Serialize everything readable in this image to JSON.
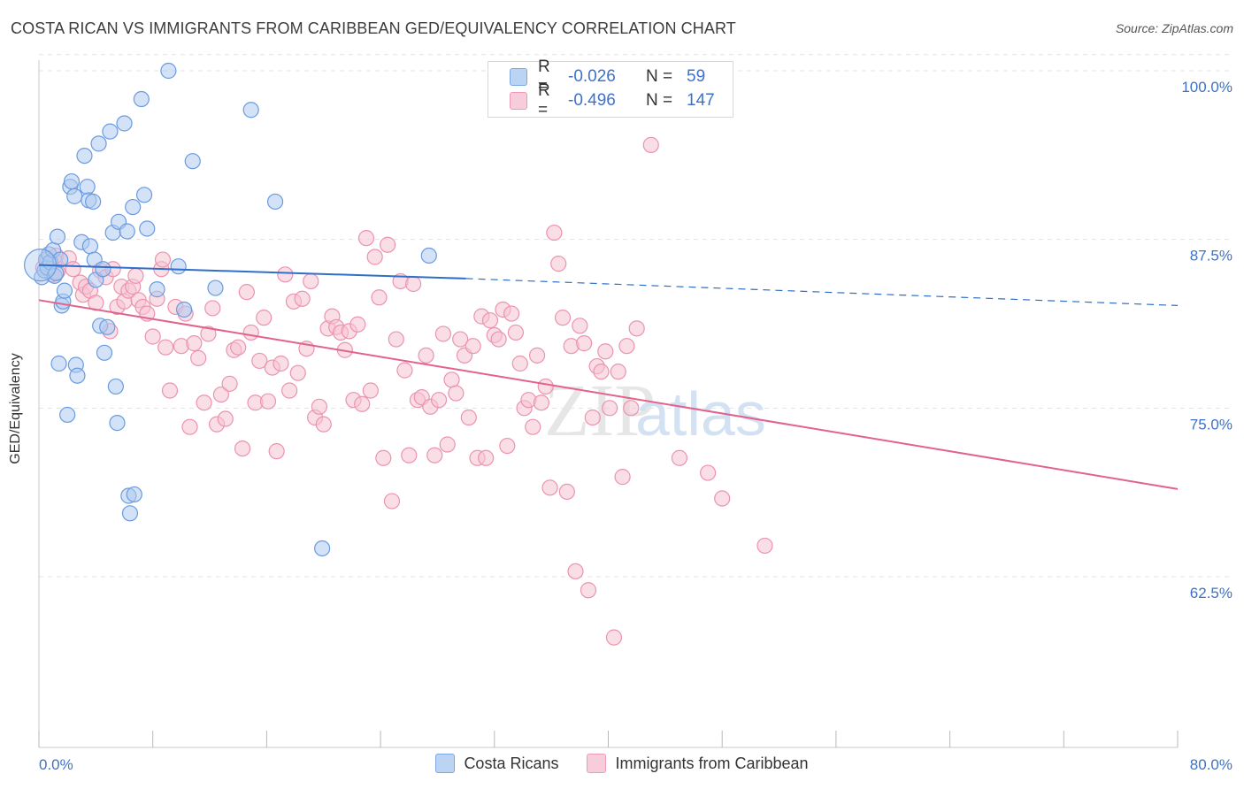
{
  "header": {
    "title": "COSTA RICAN VS IMMIGRANTS FROM CARIBBEAN GED/EQUIVALENCY CORRELATION CHART",
    "source": "Source: ZipAtlas.com"
  },
  "legend": {
    "rows": [
      {
        "r_label": "R =",
        "r_value": "-0.026",
        "n_label": "N =",
        "n_value": "59"
      },
      {
        "r_label": "R =",
        "r_value": "-0.496",
        "n_label": "N =",
        "n_value": "147"
      }
    ]
  },
  "watermark": {
    "zip": "ZIP",
    "atlas": "atlas"
  },
  "colors": {
    "blue_fill": "#aecbf0",
    "blue_stroke": "#6a9be0",
    "blue_line": "#2f6fc9",
    "pink_fill": "#f6c2d2",
    "pink_stroke": "#eb93b0",
    "pink_line": "#e2628e",
    "tick_text": "#3d72c8",
    "grid": "#e3e3e3"
  },
  "chart_data": {
    "type": "scatter",
    "title": "COSTA RICAN VS IMMIGRANTS FROM CARIBBEAN GED/EQUIVALENCY CORRELATION CHART",
    "xlabel": "",
    "ylabel": "GED/Equivalency",
    "xlim": [
      0,
      80
    ],
    "ylim": [
      52,
      103
    ],
    "x_tick_labels": [
      "0.0%",
      "80.0%"
    ],
    "y_ticks": [
      62.5,
      75.0,
      87.5,
      100.0
    ],
    "y_tick_labels": [
      "62.5%",
      "75.0%",
      "87.5%",
      "100.0%"
    ],
    "grid": true,
    "legend_position": "top-center",
    "series": [
      {
        "name": "Costa Ricans",
        "color": "blue",
        "trend": {
          "x": [
            0,
            30
          ],
          "y": [
            85.6,
            84.6
          ],
          "dashed_to": [
            80,
            82.6
          ]
        },
        "points": [
          [
            0.2,
            84.7
          ],
          [
            0.4,
            85.2
          ],
          [
            0.5,
            86.0
          ],
          [
            0.6,
            85.4
          ],
          [
            0.7,
            86.4
          ],
          [
            0.8,
            85.8
          ],
          [
            1.0,
            86.7
          ],
          [
            1.1,
            84.8
          ],
          [
            1.2,
            85.0
          ],
          [
            1.3,
            87.7
          ],
          [
            1.4,
            78.3
          ],
          [
            1.5,
            86.0
          ],
          [
            1.6,
            82.6
          ],
          [
            1.7,
            82.9
          ],
          [
            1.8,
            83.7
          ],
          [
            2.0,
            74.5
          ],
          [
            2.2,
            91.4
          ],
          [
            2.3,
            91.8
          ],
          [
            2.5,
            90.7
          ],
          [
            2.6,
            78.2
          ],
          [
            2.7,
            77.4
          ],
          [
            3.0,
            87.3
          ],
          [
            3.2,
            93.7
          ],
          [
            3.4,
            91.4
          ],
          [
            3.5,
            90.4
          ],
          [
            3.6,
            87.0
          ],
          [
            3.8,
            90.3
          ],
          [
            3.9,
            86.0
          ],
          [
            4.0,
            84.5
          ],
          [
            4.2,
            94.6
          ],
          [
            4.3,
            81.1
          ],
          [
            4.5,
            85.3
          ],
          [
            4.6,
            79.1
          ],
          [
            4.8,
            81.0
          ],
          [
            5.0,
            95.5
          ],
          [
            5.2,
            88.0
          ],
          [
            5.4,
            76.6
          ],
          [
            5.5,
            73.9
          ],
          [
            5.6,
            88.8
          ],
          [
            6.0,
            96.1
          ],
          [
            6.2,
            88.1
          ],
          [
            6.3,
            68.5
          ],
          [
            6.4,
            67.2
          ],
          [
            6.6,
            89.9
          ],
          [
            6.7,
            68.6
          ],
          [
            7.2,
            97.9
          ],
          [
            7.4,
            90.8
          ],
          [
            7.6,
            88.3
          ],
          [
            8.3,
            83.8
          ],
          [
            9.1,
            100.0
          ],
          [
            9.8,
            85.5
          ],
          [
            10.2,
            82.3
          ],
          [
            10.8,
            93.3
          ],
          [
            12.4,
            83.9
          ],
          [
            14.9,
            97.1
          ],
          [
            16.6,
            90.3
          ],
          [
            19.9,
            64.6
          ],
          [
            27.4,
            86.3
          ],
          [
            0.1,
            85.6
          ]
        ]
      },
      {
        "name": "Immigrants from Caribbean",
        "color": "pink",
        "trend": {
          "x": [
            0,
            80
          ],
          "y": [
            83.0,
            69.0
          ]
        },
        "points": [
          [
            0.3,
            85.4
          ],
          [
            0.6,
            86.1
          ],
          [
            0.9,
            84.9
          ],
          [
            1.1,
            85.9
          ],
          [
            1.2,
            86.3
          ],
          [
            1.3,
            85.1
          ],
          [
            2.1,
            86.1
          ],
          [
            2.4,
            85.3
          ],
          [
            2.9,
            84.3
          ],
          [
            3.1,
            83.4
          ],
          [
            3.3,
            84.0
          ],
          [
            3.6,
            83.7
          ],
          [
            4.0,
            82.8
          ],
          [
            4.3,
            85.2
          ],
          [
            4.7,
            84.7
          ],
          [
            5.0,
            80.7
          ],
          [
            5.2,
            85.3
          ],
          [
            5.5,
            82.5
          ],
          [
            5.8,
            84.0
          ],
          [
            6.0,
            82.9
          ],
          [
            6.3,
            83.7
          ],
          [
            6.6,
            84.0
          ],
          [
            6.8,
            84.8
          ],
          [
            7.0,
            83.0
          ],
          [
            7.3,
            82.5
          ],
          [
            7.6,
            82.0
          ],
          [
            8.0,
            80.3
          ],
          [
            8.3,
            83.1
          ],
          [
            8.6,
            85.3
          ],
          [
            8.9,
            79.5
          ],
          [
            9.2,
            76.3
          ],
          [
            9.6,
            82.5
          ],
          [
            10.0,
            79.6
          ],
          [
            10.3,
            82.0
          ],
          [
            10.6,
            73.6
          ],
          [
            10.9,
            79.8
          ],
          [
            11.2,
            78.7
          ],
          [
            11.6,
            75.4
          ],
          [
            11.9,
            80.5
          ],
          [
            12.2,
            82.4
          ],
          [
            12.5,
            73.8
          ],
          [
            12.8,
            76.0
          ],
          [
            13.1,
            74.2
          ],
          [
            13.4,
            76.8
          ],
          [
            13.7,
            79.3
          ],
          [
            14.0,
            79.5
          ],
          [
            14.3,
            72.0
          ],
          [
            14.6,
            83.6
          ],
          [
            14.9,
            80.6
          ],
          [
            15.2,
            75.4
          ],
          [
            15.5,
            78.5
          ],
          [
            15.8,
            81.7
          ],
          [
            16.1,
            75.5
          ],
          [
            16.4,
            78.0
          ],
          [
            16.7,
            71.8
          ],
          [
            17.0,
            78.3
          ],
          [
            17.3,
            84.9
          ],
          [
            17.6,
            76.3
          ],
          [
            17.9,
            82.9
          ],
          [
            18.2,
            77.6
          ],
          [
            18.5,
            83.1
          ],
          [
            18.8,
            79.4
          ],
          [
            19.1,
            84.4
          ],
          [
            19.4,
            74.3
          ],
          [
            19.7,
            75.1
          ],
          [
            20.0,
            73.8
          ],
          [
            20.3,
            80.9
          ],
          [
            20.6,
            81.8
          ],
          [
            20.9,
            81.0
          ],
          [
            21.2,
            80.6
          ],
          [
            21.5,
            79.3
          ],
          [
            21.8,
            80.7
          ],
          [
            22.1,
            75.6
          ],
          [
            22.4,
            81.2
          ],
          [
            22.7,
            75.3
          ],
          [
            23.0,
            87.6
          ],
          [
            23.3,
            76.3
          ],
          [
            23.6,
            86.2
          ],
          [
            23.9,
            83.2
          ],
          [
            24.2,
            71.3
          ],
          [
            24.5,
            87.1
          ],
          [
            24.8,
            68.1
          ],
          [
            25.1,
            80.1
          ],
          [
            25.4,
            84.4
          ],
          [
            25.7,
            77.8
          ],
          [
            26.0,
            71.5
          ],
          [
            26.3,
            84.2
          ],
          [
            26.6,
            75.6
          ],
          [
            26.9,
            75.8
          ],
          [
            27.2,
            78.9
          ],
          [
            27.5,
            75.1
          ],
          [
            27.8,
            71.5
          ],
          [
            28.1,
            75.6
          ],
          [
            28.4,
            80.5
          ],
          [
            28.7,
            72.3
          ],
          [
            29.0,
            77.1
          ],
          [
            29.3,
            76.1
          ],
          [
            29.6,
            80.1
          ],
          [
            29.9,
            78.9
          ],
          [
            30.2,
            74.3
          ],
          [
            30.5,
            79.6
          ],
          [
            30.8,
            71.3
          ],
          [
            31.1,
            81.8
          ],
          [
            31.4,
            71.3
          ],
          [
            31.7,
            81.5
          ],
          [
            32.0,
            80.4
          ],
          [
            32.3,
            80.1
          ],
          [
            32.6,
            82.3
          ],
          [
            32.9,
            72.2
          ],
          [
            33.2,
            82.0
          ],
          [
            33.5,
            80.6
          ],
          [
            33.8,
            78.3
          ],
          [
            34.1,
            75.0
          ],
          [
            34.4,
            75.6
          ],
          [
            34.7,
            73.6
          ],
          [
            35.0,
            78.9
          ],
          [
            35.3,
            75.4
          ],
          [
            35.6,
            76.6
          ],
          [
            35.9,
            69.1
          ],
          [
            36.2,
            88.0
          ],
          [
            36.5,
            85.7
          ],
          [
            36.8,
            81.7
          ],
          [
            37.1,
            68.8
          ],
          [
            37.4,
            79.6
          ],
          [
            37.7,
            62.9
          ],
          [
            38.0,
            81.1
          ],
          [
            38.3,
            79.8
          ],
          [
            38.6,
            61.5
          ],
          [
            38.9,
            74.3
          ],
          [
            39.2,
            78.1
          ],
          [
            39.5,
            77.7
          ],
          [
            39.8,
            79.2
          ],
          [
            40.1,
            75.0
          ],
          [
            40.4,
            58.0
          ],
          [
            40.7,
            77.7
          ],
          [
            41.0,
            69.9
          ],
          [
            41.3,
            79.6
          ],
          [
            41.6,
            75.0
          ],
          [
            42.0,
            80.9
          ],
          [
            43.0,
            94.5
          ],
          [
            45.0,
            71.3
          ],
          [
            47.0,
            70.2
          ],
          [
            48.0,
            68.3
          ],
          [
            51.0,
            64.8
          ],
          [
            8.7,
            86.0
          ]
        ]
      }
    ]
  },
  "bottom_legend": {
    "items": [
      {
        "label": "Costa Ricans"
      },
      {
        "label": "Immigrants from Caribbean"
      }
    ]
  }
}
